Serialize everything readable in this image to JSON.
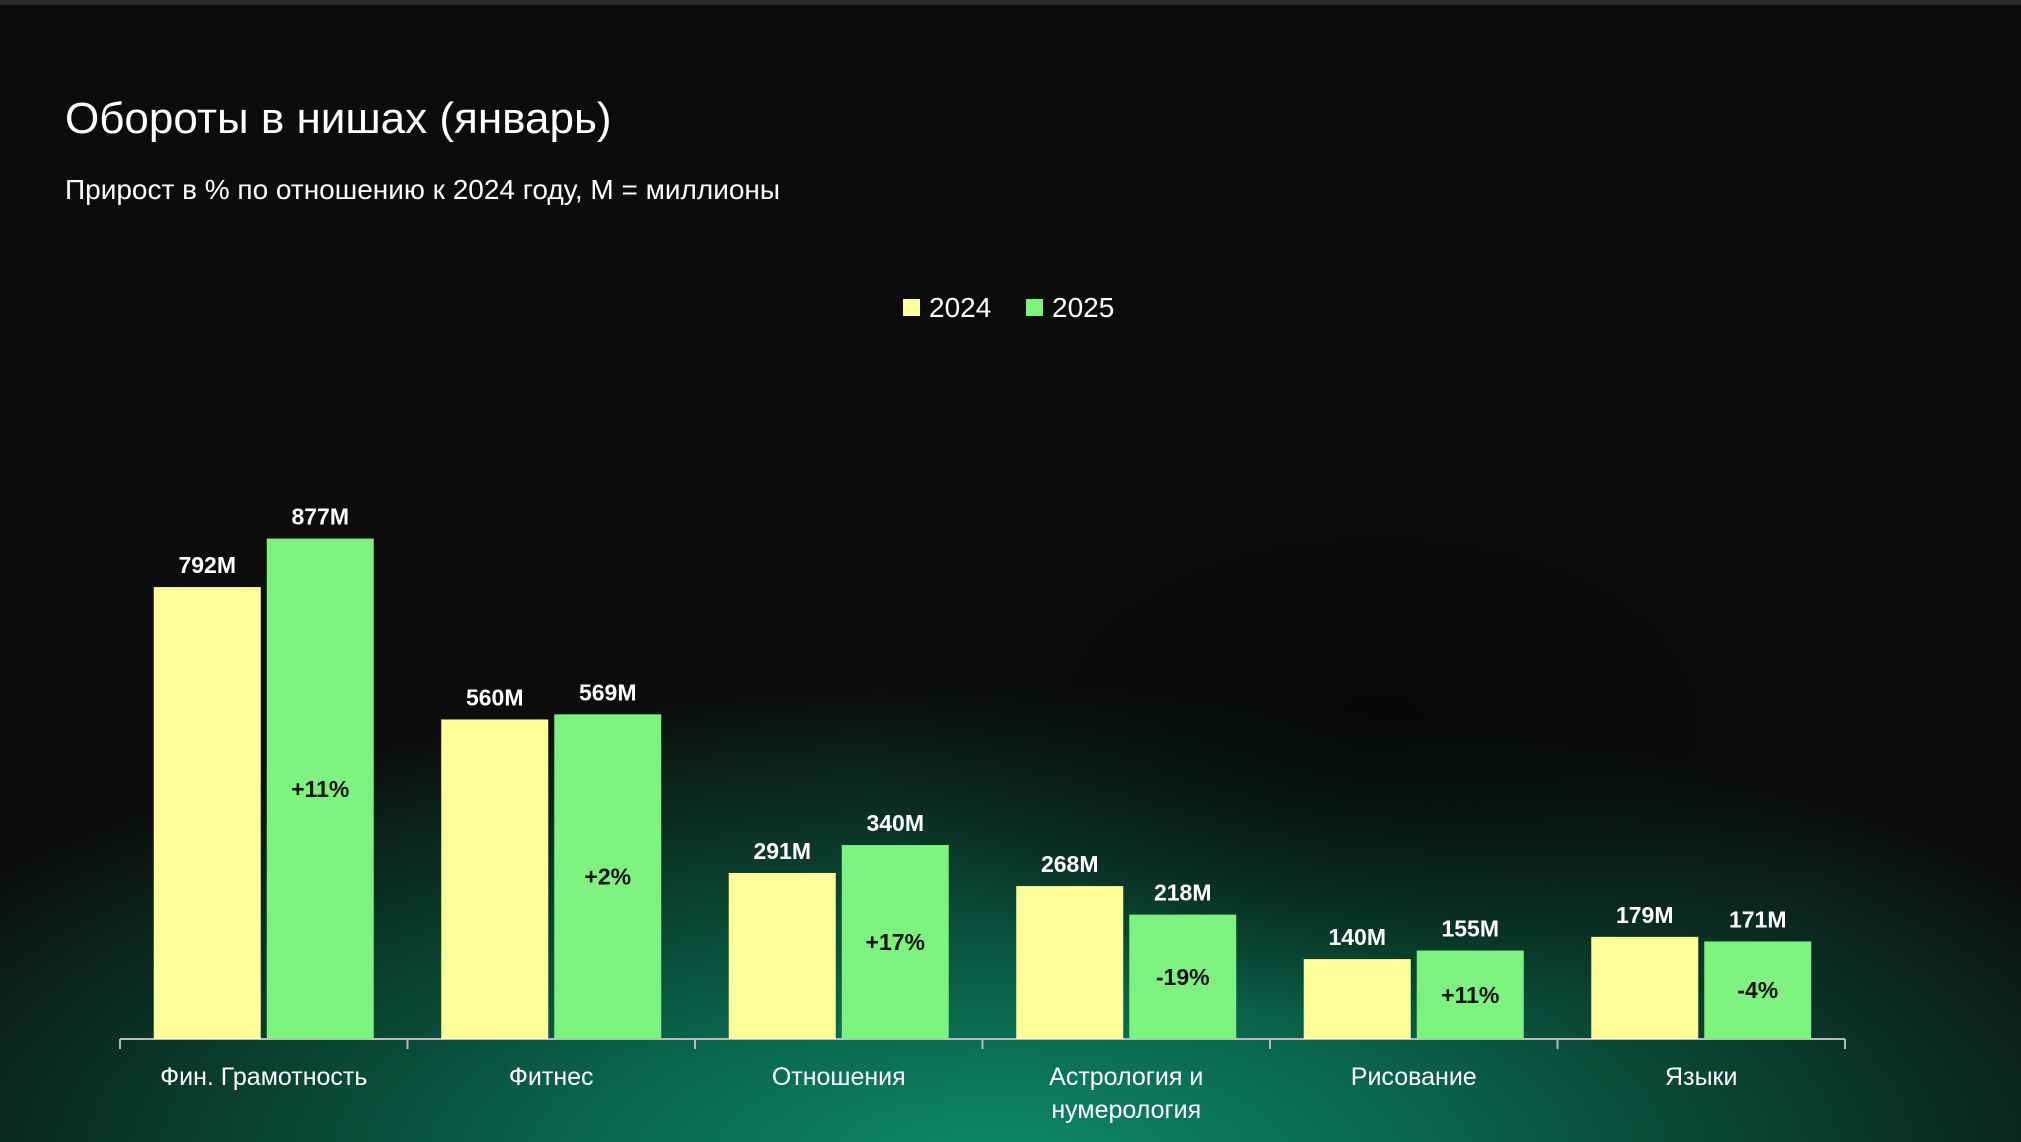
{
  "title": "Обороты в нишах (январь)",
  "subtitle": "Прирост в % по отношению к 2024 году, М = миллионы",
  "colors": {
    "series_2024": "#ffff99",
    "series_2025": "#7ef27e",
    "axis": "#b9b9b9"
  },
  "chart_data": {
    "type": "bar",
    "title": "Обороты в нишах (январь)",
    "subtitle": "Прирост в % по отношению к 2024 году, М = миллионы",
    "unit": "M",
    "legend_position": "top-center",
    "grid": false,
    "ylim": [
      0,
      1000
    ],
    "categories": [
      [
        "Фин. Грамотность"
      ],
      [
        "Фитнес"
      ],
      [
        "Отношения"
      ],
      [
        "Астрология и",
        "нумерология"
      ],
      [
        "Рисование"
      ],
      [
        "Языки"
      ]
    ],
    "series": [
      {
        "name": "2024",
        "values": [
          792,
          560,
          291,
          268,
          140,
          179
        ],
        "labels": [
          "792M",
          "560M",
          "291M",
          "268M",
          "140M",
          "179M"
        ]
      },
      {
        "name": "2025",
        "values": [
          877,
          569,
          340,
          218,
          155,
          171
        ],
        "labels": [
          "877M",
          "569M",
          "340M",
          "218M",
          "155M",
          "171M"
        ]
      }
    ],
    "growth_labels": [
      "+11%",
      "+2%",
      "+17%",
      "-19%",
      "+11%",
      "-4%"
    ]
  }
}
